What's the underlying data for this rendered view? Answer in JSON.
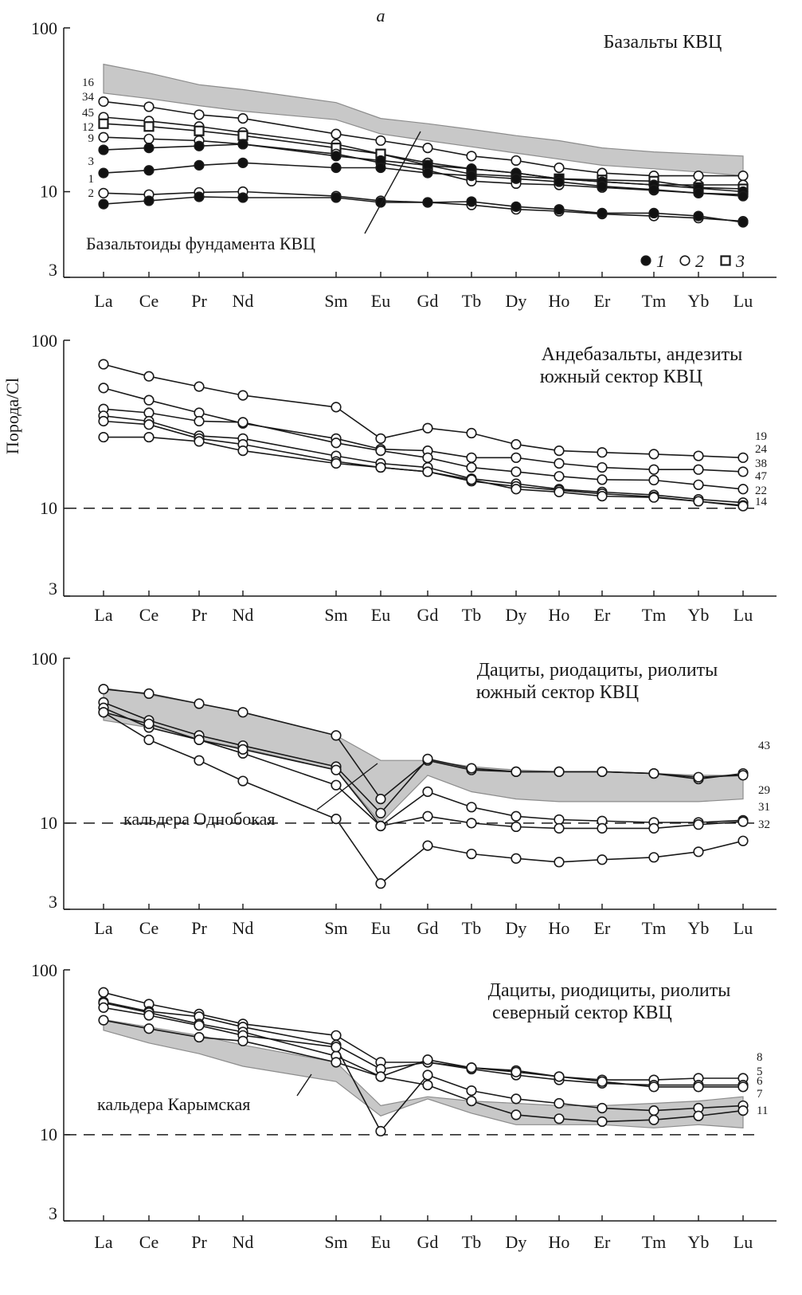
{
  "figure": {
    "panel_letter": "а",
    "ylabel": "Порода/Cl",
    "legend": [
      {
        "marker": "filled-circle",
        "label": "1"
      },
      {
        "marker": "open-circle",
        "label": "2"
      },
      {
        "marker": "open-square",
        "label": "3"
      }
    ],
    "colors": {
      "line": "#1a1a1a",
      "band": "#c8c8c8",
      "band_edge": "#8c8c8c",
      "filled_marker": "#111111",
      "axis": "#1a1a1a"
    }
  },
  "chart_data": [
    {
      "type": "line",
      "title": "Базальты КВЦ",
      "xlabel": "",
      "ylabel": "Порода/Cl",
      "log_scale": true,
      "ylim": [
        3,
        100
      ],
      "yticks": [
        "100",
        "10",
        "3"
      ],
      "categories": [
        "La",
        "Ce",
        "Pr",
        "Nd",
        "Sm",
        "Eu",
        "Gd",
        "Tb",
        "Dy",
        "Ho",
        "Er",
        "Tm",
        "Yb",
        "Lu"
      ],
      "dashed_reference": null,
      "band": {
        "label": "Базальтоиды фундамента КВЦ",
        "upper": [
          60,
          53,
          45,
          42,
          35,
          28,
          26,
          24,
          22,
          20.5,
          18.5,
          17.5,
          17,
          16.5
        ],
        "lower": [
          40,
          37,
          33.5,
          31,
          27.5,
          22.5,
          20.5,
          18.8,
          17.2,
          15.8,
          14.5,
          13.8,
          13.2,
          12.5
        ]
      },
      "series": [
        {
          "name": "16",
          "marker": "open-circle",
          "values": [
            35.5,
            33,
            29.5,
            28,
            22.5,
            20.5,
            18.5,
            16.5,
            15.5,
            14,
            13,
            12.5,
            12.5,
            12.5
          ]
        },
        {
          "name": "34",
          "marker": "open-circle",
          "values": [
            28.5,
            27,
            25,
            23,
            19.5,
            17,
            15,
            13.8,
            13,
            12,
            11.5,
            11,
            11,
            11
          ]
        },
        {
          "name": "45",
          "marker": "open-square",
          "values": [
            26,
            25,
            23.5,
            22,
            18.5,
            17,
            14.5,
            12.8,
            12.4,
            12,
            11.8,
            11.6,
            10.6,
            10.4
          ]
        },
        {
          "name": "12",
          "marker": "open-circle",
          "values": [
            21.5,
            21,
            20.5,
            19.5,
            17,
            15,
            13.5,
            11.6,
            11.2,
            11,
            10.6,
            10.2,
            9.8,
            9.6
          ]
        },
        {
          "name": "9",
          "marker": "filled-circle",
          "values": [
            18,
            18.5,
            19,
            19.5,
            16.5,
            15.5,
            14.5,
            13.8,
            13,
            12,
            11.5,
            11,
            10.5,
            10
          ]
        },
        {
          "name": "3",
          "marker": "filled-circle",
          "values": [
            13,
            13.5,
            14.5,
            15,
            14,
            14,
            13,
            12.5,
            12,
            11.5,
            10.8,
            10.3,
            9.8,
            9.4
          ]
        },
        {
          "name": "1",
          "marker": "open-circle",
          "values": [
            9.8,
            9.6,
            9.9,
            10,
            9.4,
            8.8,
            8.6,
            8.3,
            7.8,
            7.6,
            7.3,
            7.1,
            6.9,
            6.6
          ]
        },
        {
          "name": "2",
          "marker": "filled-circle",
          "values": [
            8.4,
            8.8,
            9.3,
            9.2,
            9.2,
            8.6,
            8.6,
            8.7,
            8.1,
            7.8,
            7.4,
            7.4,
            7.1,
            6.5
          ]
        }
      ]
    },
    {
      "type": "line",
      "title": "Андебазальты, андезиты",
      "subtitle": "южный сектор КВЦ",
      "xlabel": "",
      "ylabel": "Порода/Cl",
      "log_scale": true,
      "ylim": [
        3,
        100
      ],
      "yticks": [
        "100",
        "10",
        "3"
      ],
      "categories": [
        "La",
        "Ce",
        "Pr",
        "Nd",
        "Sm",
        "Eu",
        "Gd",
        "Tb",
        "Dy",
        "Ho",
        "Er",
        "Tm",
        "Yb",
        "Lu"
      ],
      "dashed_reference": 10,
      "band": null,
      "series": [
        {
          "name": "19",
          "marker": "open-circle",
          "values": [
            72,
            61,
            53,
            47,
            40,
            26,
            30,
            28,
            24,
            22,
            21.5,
            21,
            20.5,
            20
          ]
        },
        {
          "name": "24",
          "marker": "open-circle",
          "values": [
            52,
            44,
            37,
            32,
            26,
            22.5,
            22,
            20,
            20,
            18.5,
            17.5,
            17,
            17,
            16.5
          ]
        },
        {
          "name": "38",
          "marker": "open-circle",
          "values": [
            39,
            37,
            33,
            32.5,
            24.5,
            22,
            20,
            17.5,
            16.5,
            15.5,
            14.8,
            14.7,
            13.8,
            13
          ]
        },
        {
          "name": "47",
          "marker": "open-circle",
          "values": [
            35.5,
            33,
            27,
            26,
            20.5,
            18.5,
            17.5,
            15,
            14,
            13,
            12.5,
            12,
            11.3,
            10.8
          ]
        },
        {
          "name": "22",
          "marker": "open-circle",
          "values": [
            33,
            31.5,
            26,
            24,
            19,
            17.5,
            16.5,
            14.5,
            13.5,
            12.8,
            12.2,
            11.7,
            11,
            10.4
          ]
        },
        {
          "name": "14",
          "marker": "open-circle",
          "values": [
            26.5,
            26.5,
            25,
            22,
            18.5,
            17.5,
            16.5,
            14.8,
            13,
            12.5,
            11.8,
            11.6,
            11,
            10.3
          ]
        }
      ]
    },
    {
      "type": "line",
      "title": "Дациты, риодациты, риолиты",
      "subtitle": "южный сектор КВЦ",
      "xlabel": "",
      "ylabel": "Порода/Cl",
      "log_scale": true,
      "ylim": [
        3,
        100
      ],
      "yticks": [
        "100",
        "10",
        "3"
      ],
      "categories": [
        "La",
        "Ce",
        "Pr",
        "Nd",
        "Sm",
        "Eu",
        "Gd",
        "Tb",
        "Dy",
        "Ho",
        "Er",
        "Tm",
        "Yb",
        "Lu"
      ],
      "dashed_reference": 10,
      "band": {
        "label": "кальдера Однобокая",
        "upper": [
          66,
          60,
          53,
          47,
          34,
          24,
          24,
          22,
          21,
          20.5,
          20.5,
          20,
          19.5,
          19.5
        ],
        "lower": [
          42,
          38,
          32,
          28.5,
          21,
          10,
          19.5,
          15.5,
          14,
          13.5,
          13.5,
          13.5,
          13.5,
          14
        ]
      },
      "series": [
        {
          "name": "43",
          "marker": "open-circle",
          "values": [
            65,
            61,
            53,
            47,
            34,
            14,
            24,
            21,
            20.5,
            20.5,
            20.5,
            20,
            18.5,
            20
          ]
        },
        {
          "name": "29",
          "marker": "open-circle",
          "values": [
            54,
            42,
            34,
            29.5,
            22,
            11.5,
            24.5,
            21.5,
            20.5,
            20.5,
            20.5,
            20,
            19,
            19.5
          ]
        },
        {
          "name": "31",
          "marker": "open-circle",
          "values": [
            50,
            38,
            32,
            26.5,
            17,
            9.6,
            15.5,
            12.5,
            11,
            10.5,
            10.3,
            10.1,
            10.1,
            10.4
          ]
        },
        {
          "name": "32",
          "marker": "open-circle",
          "values": [
            47,
            32,
            24,
            18,
            10.6,
            4.3,
            7.3,
            6.5,
            6.1,
            5.8,
            6,
            6.2,
            6.7,
            7.8
          ]
        },
        {
          "name": "",
          "marker": "open-circle",
          "values": [
            47,
            40,
            32,
            28,
            21,
            9.6,
            11,
            10,
            9.5,
            9.3,
            9.3,
            9.3,
            9.8,
            10.2
          ]
        }
      ]
    },
    {
      "type": "line",
      "title": "Дациты, риодициты, риолиты",
      "subtitle": "северный сектор КВЦ",
      "xlabel": "",
      "ylabel": "Порода/Cl",
      "log_scale": true,
      "ylim": [
        3,
        100
      ],
      "yticks": [
        "100",
        "10",
        "3"
      ],
      "categories": [
        "La",
        "Ce",
        "Pr",
        "Nd",
        "Sm",
        "Eu",
        "Gd",
        "Tb",
        "Dy",
        "Ho",
        "Er",
        "Tm",
        "Yb",
        "Lu"
      ],
      "dashed_reference": 10,
      "band": {
        "label": "кальдера Карымская",
        "upper": [
          50,
          45,
          40,
          35,
          27.5,
          15,
          17,
          16,
          15.5,
          15,
          15,
          15.5,
          16,
          17
        ],
        "lower": [
          43,
          36,
          31,
          26,
          21,
          13,
          16.5,
          13.5,
          11.5,
          11.5,
          11.5,
          11,
          11.5,
          11
        ]
      },
      "series": [
        {
          "name": "8",
          "marker": "open-circle",
          "values": [
            73,
            62,
            54,
            47,
            40,
            27.5,
            27.5,
            25.5,
            24.5,
            22.5,
            21.5,
            21.5,
            22,
            22
          ]
        },
        {
          "name": "5",
          "marker": "open-circle",
          "values": [
            64,
            56,
            52,
            45,
            35,
            25,
            27.5,
            25,
            23,
            21.5,
            20.5,
            20,
            20,
            20
          ]
        },
        {
          "name": "6",
          "marker": "open-circle",
          "values": [
            63,
            55,
            47,
            42,
            30,
            22.5,
            28.5,
            25.5,
            24,
            22.5,
            21,
            19.5,
            19.5,
            19.5
          ]
        },
        {
          "name": "7",
          "marker": "open-circle",
          "values": [
            59,
            53,
            46,
            40,
            34,
            10.5,
            23,
            18.5,
            16.5,
            15.5,
            14.5,
            14,
            14.5,
            15
          ]
        },
        {
          "name": "11",
          "marker": "open-circle",
          "values": [
            49.5,
            44,
            39,
            37,
            27.5,
            22.5,
            20,
            16,
            13.2,
            12.5,
            12,
            12.3,
            13,
            14
          ]
        }
      ]
    }
  ]
}
